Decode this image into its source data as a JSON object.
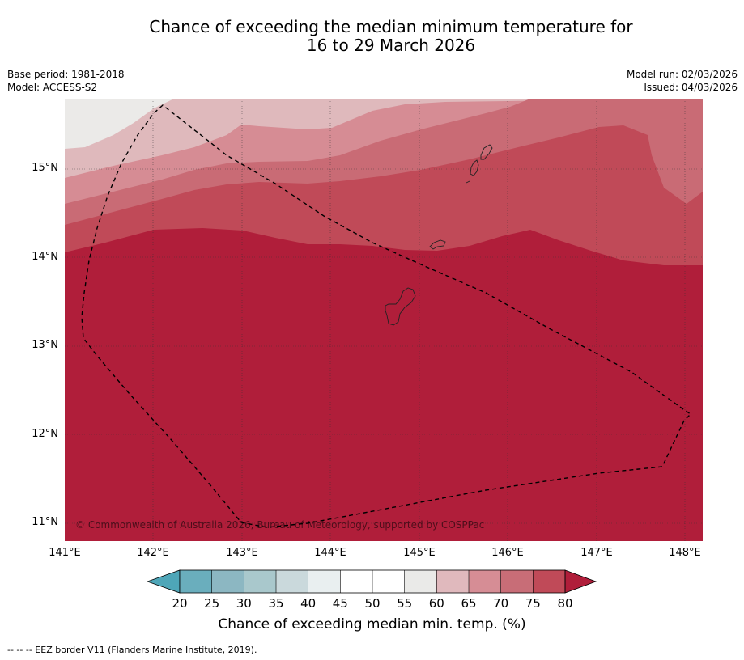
{
  "title_line1": "Chance of exceeding the median minimum temperature for",
  "title_line2": "16 to 29 March 2026",
  "base_period": "Base period: 1981-2018",
  "model": "Model: ACCESS-S2",
  "model_run": "Model run: 02/03/2026",
  "issued": "Issued: 04/03/2026",
  "lat_labels": [
    "15°N",
    "14°N",
    "13°N",
    "12°N",
    "11°N"
  ],
  "lon_labels": [
    "141°E",
    "142°E",
    "143°E",
    "144°E",
    "145°E",
    "146°E",
    "147°E",
    "148°E"
  ],
  "copyright": "© Commonwealth of Australia 2026, Bureau of Meteorology, supported by COSPPac",
  "colorbar": {
    "ticks": [
      "20",
      "25",
      "30",
      "35",
      "40",
      "45",
      "50",
      "55",
      "60",
      "65",
      "70",
      "75",
      "80"
    ],
    "colors": [
      "#4ea6b8",
      "#6aaebd",
      "#8cb7c2",
      "#a9c8cc",
      "#cad9dc",
      "#e9eff0",
      "#ffffff",
      "#ffffff",
      "#eaeae8",
      "#e0b9bd",
      "#d68d95",
      "#c86d77",
      "#c04a58",
      "#b01e3a"
    ],
    "label": "Chance of exceeding median min. temp. (%)"
  },
  "footnote": "--  --  -- EEZ border V11 (Flanders Marine Institute, 2019).",
  "map_bands": [
    {
      "range": "55-60",
      "color": "#ebeae8"
    },
    {
      "range": "60-65",
      "color": "#dfb9bc"
    },
    {
      "range": "65-70",
      "color": "#d68c94"
    },
    {
      "range": "70-75",
      "color": "#c96b75"
    },
    {
      "range": "75-80",
      "color": "#c04a58"
    },
    {
      "range": ">80",
      "color": "#b01e3a"
    }
  ]
}
